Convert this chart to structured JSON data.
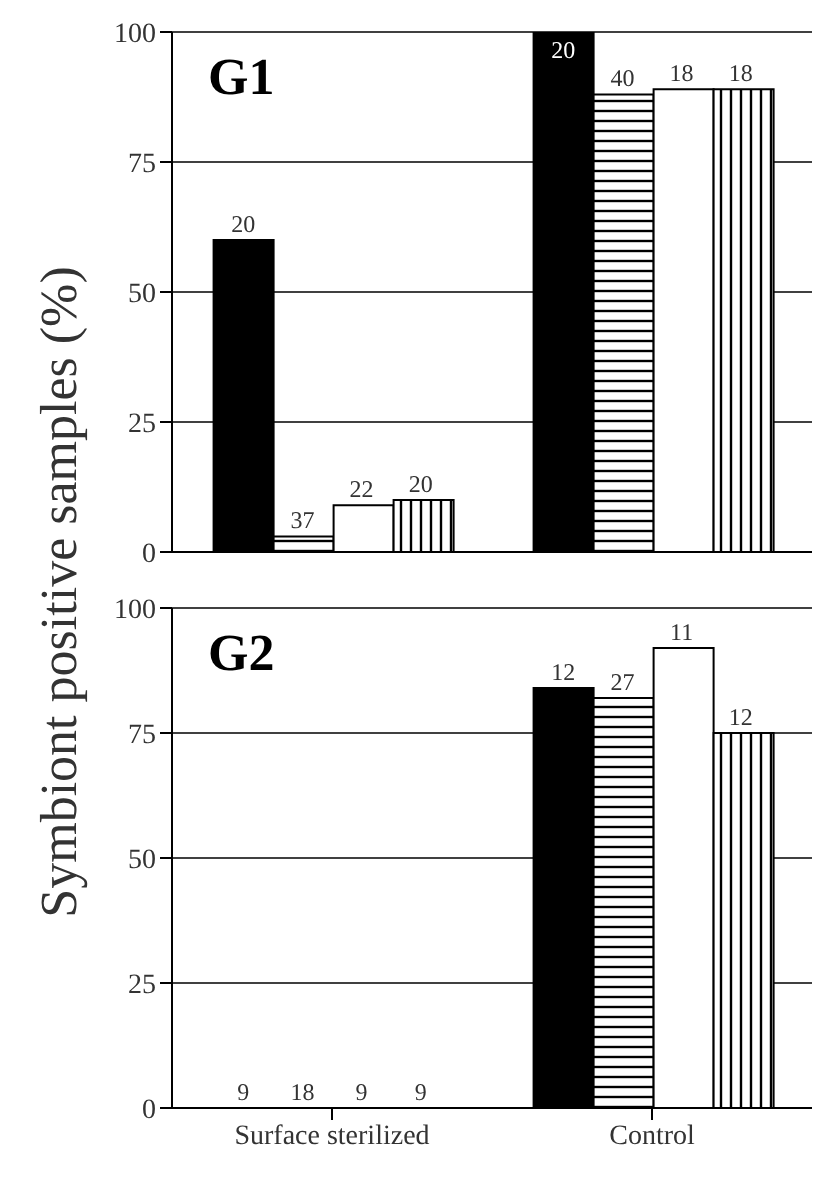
{
  "chart_data": [
    {
      "type": "bar",
      "title": "G1",
      "ylabel": "Symbiont positive samples (%)",
      "categories": [
        null,
        null
      ],
      "ylim": [
        0,
        100
      ],
      "yticks": [
        0,
        25,
        50,
        75,
        100
      ],
      "grid": "y",
      "tick_labels": "y",
      "series": [
        {
          "color": "#000000",
          "values": [
            60,
            100
          ]
        },
        {
          "color": "#000000",
          "values": [
            3,
            88
          ]
        },
        {
          "color": "#ffffff",
          "values": [
            9,
            89
          ]
        },
        {
          "color": "#000000",
          "values": [
            10,
            89
          ]
        }
      ],
      "annotations": [
        "20",
        "37",
        "22",
        "20",
        "20",
        "40",
        "18",
        "18"
      ]
    },
    {
      "type": "bar",
      "title": "G2",
      "categories": [
        "Surface sterilized",
        "Control"
      ],
      "ylim": [
        0,
        100
      ],
      "yticks": [
        0,
        25,
        50,
        75,
        100
      ],
      "grid": "y",
      "series": [
        {
          "color": "#000000",
          "values": [
            0,
            84
          ]
        },
        {
          "color": "#000000",
          "values": [
            0,
            82
          ]
        },
        {
          "color": "#ffffff",
          "values": [
            0,
            92
          ]
        },
        {
          "color": "#000000",
          "values": [
            0,
            75
          ]
        }
      ],
      "annotations": [
        "9",
        "18",
        "9",
        "9",
        "12",
        "27",
        "11",
        "12"
      ]
    }
  ]
}
